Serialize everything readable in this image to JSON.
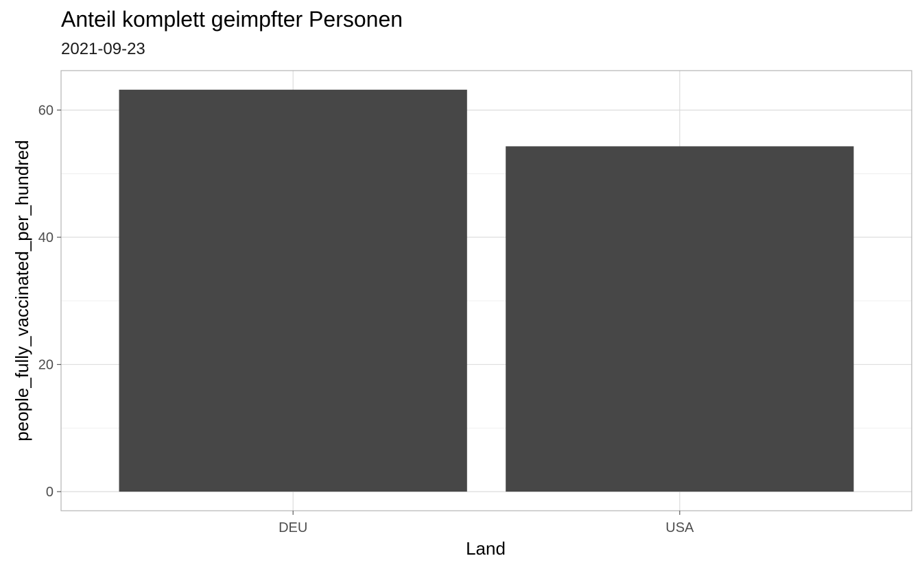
{
  "chart_data": {
    "type": "bar",
    "title": "Anteil komplett geimpfter Personen",
    "subtitle": "2021-09-23",
    "xlabel": "Land",
    "ylabel": "people_fully_vaccinated_per_hundred",
    "categories": [
      "DEU",
      "USA"
    ],
    "values": [
      63.2,
      54.3
    ],
    "ylim": [
      -3,
      66.2
    ],
    "yticks": [
      0,
      20,
      40,
      60
    ],
    "grid": true,
    "bar_color": "#474747",
    "panel_border_color": "#b3b3b3",
    "grid_major_color": "#d9d9d9",
    "grid_minor_color": "#ececec"
  }
}
